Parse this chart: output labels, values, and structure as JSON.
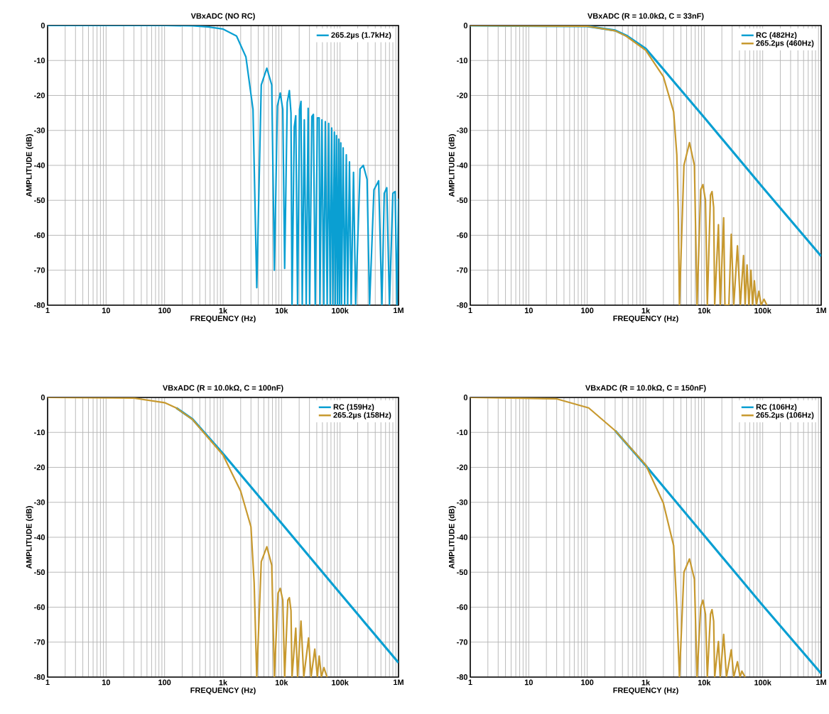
{
  "chart_data": [
    {
      "type": "line",
      "title": "VBxADC (NO RC)",
      "xlabel": "FREQUENCY (Hz)",
      "ylabel": "AMPLITUDE (dB)",
      "log": "x",
      "grid": true,
      "legend": "top right",
      "xlim": [
        1,
        1000000
      ],
      "xticks": [
        1,
        10,
        100,
        {
          "value": 1000,
          "label": "1k"
        },
        {
          "value": 10000,
          "label": "10k"
        },
        {
          "value": 100000,
          "label": "100k"
        },
        {
          "value": 1000000,
          "label": "1M"
        }
      ],
      "ylim": [
        -80,
        0
      ],
      "yticks": [
        -80,
        -70,
        -60,
        -50,
        -40,
        -30,
        -20,
        -10,
        0
      ],
      "series": [
        {
          "name": "265.2µs (1.7kHz)",
          "color": "#0a9fd2",
          "x": [
            1,
            100,
            300,
            550,
            1000,
            1700,
            2460,
            3250,
            3770,
            4500,
            5600,
            6800,
            7540,
            8500,
            9500,
            10500,
            11300,
            12500,
            13600,
            14500,
            15100,
            16500,
            17500,
            18800,
            20300,
            21500,
            22600,
            24500,
            26400,
            28500,
            30200,
            33000,
            35000,
            37700,
            41000,
            44000,
            45300,
            49000,
            52800,
            56000,
            60300,
            64000,
            67900,
            72000,
            75400,
            80000,
            83000,
            87000,
            90500,
            95000,
            98000,
            103000,
            106000,
            113000,
            120000,
            128000,
            135000,
            145000,
            155000,
            170000,
            185000,
            220000,
            250000,
            290000,
            320000,
            380000,
            457000,
            520000,
            570000,
            630000,
            700000,
            800000,
            875000,
            940000,
            1000000
          ],
          "values": [
            0,
            0,
            -0.1,
            -0.4,
            -1,
            -3,
            -9,
            -24,
            -75,
            -17,
            -12.2,
            -17,
            -70,
            -23,
            -19.3,
            -24,
            -69.5,
            -22,
            -18.6,
            -25,
            -80,
            -29,
            -25.8,
            -80,
            -24,
            -21.7,
            -80,
            -27,
            -80,
            -23.7,
            -80,
            -26,
            -25.4,
            -80,
            -26.4,
            -26.4,
            -80,
            -27,
            -80,
            -27.5,
            -80,
            -28,
            -80,
            -29.3,
            -80,
            -30.5,
            -80,
            -31.5,
            -80,
            -32.5,
            -80,
            -33.6,
            -80,
            -35,
            -80,
            -37,
            -80,
            -39,
            -80,
            -42,
            -80,
            -41,
            -40,
            -44,
            -80,
            -47,
            -44.4,
            -80,
            -48,
            -46.4,
            -80,
            -48,
            -47.5,
            -80,
            -49.5
          ]
        }
      ]
    },
    {
      "type": "line",
      "title": "VBxADC (R = 10.0kΩ, C = 33nF)",
      "xlabel": "FREQUENCY (Hz)",
      "ylabel": "AMPLITUDE (dB)",
      "log": "x",
      "grid": true,
      "legend": "top right",
      "xlim": [
        1,
        1000000
      ],
      "xticks": [
        1,
        10,
        100,
        {
          "value": 1000,
          "label": "1k"
        },
        {
          "value": 10000,
          "label": "10k"
        },
        {
          "value": 100000,
          "label": "100k"
        },
        {
          "value": 1000000,
          "label": "1M"
        }
      ],
      "ylim": [
        -80,
        0
      ],
      "yticks": [
        -80,
        -70,
        -60,
        -50,
        -40,
        -30,
        -20,
        -10,
        0
      ],
      "series": [
        {
          "name": "RC (482Hz)",
          "color": "#0a9fd2",
          "x": [
            1,
            100,
            300,
            482,
            1000,
            2000,
            3000,
            10000,
            100000,
            1000000
          ],
          "values": [
            0,
            -0.2,
            -1.4,
            -3,
            -6.6,
            -12.5,
            -16,
            -26.3,
            -46.3,
            -66
          ]
        },
        {
          "name": "265.2µs (460Hz)",
          "color": "#c7992f",
          "x": [
            1,
            100,
            300,
            460,
            1000,
            2000,
            3000,
            3400,
            3600,
            3770,
            4500,
            5600,
            6800,
            7540,
            8700,
            9500,
            10500,
            11300,
            12800,
            13600,
            14500,
            15100,
            17500,
            18800,
            21500,
            22600,
            26400,
            29000,
            32000,
            37000,
            41500,
            47000,
            50000,
            54000,
            58000,
            63000,
            67000,
            72000,
            78000,
            86000,
            94000,
            105000,
            118000
          ],
          "values": [
            0,
            -0.2,
            -1.5,
            -3,
            -7.1,
            -14.6,
            -24.7,
            -37,
            -53,
            -80,
            -40,
            -33.5,
            -40,
            -80,
            -47,
            -45.5,
            -50,
            -80,
            -48.5,
            -47.5,
            -52,
            -80,
            -57,
            -80,
            -55,
            -80,
            -80,
            -59.7,
            -80,
            -63,
            -80,
            -65.8,
            -80,
            -68.5,
            -80,
            -70,
            -80,
            -73,
            -80,
            -76,
            -80,
            -78.3,
            -80
          ]
        }
      ]
    },
    {
      "type": "line",
      "title": "VBxADC (R = 10.0kΩ, C = 100nF)",
      "xlabel": "FREQUENCY (Hz)",
      "ylabel": "AMPLITUDE (dB)",
      "log": "x",
      "grid": true,
      "legend": "top right",
      "xlim": [
        1,
        1000000
      ],
      "xticks": [
        1,
        10,
        100,
        {
          "value": 1000,
          "label": "1k"
        },
        {
          "value": 10000,
          "label": "10k"
        },
        {
          "value": 100000,
          "label": "100k"
        },
        {
          "value": 1000000,
          "label": "1M"
        }
      ],
      "ylim": [
        -80,
        0
      ],
      "yticks": [
        -80,
        -70,
        -60,
        -50,
        -40,
        -30,
        -20,
        -10,
        0
      ],
      "series": [
        {
          "name": "RC (159Hz)",
          "color": "#0a9fd2",
          "x": [
            159,
            300,
            1000,
            10000,
            100000,
            1000000
          ],
          "values": [
            -3,
            -6.2,
            -16.1,
            -36,
            -56,
            -75.9
          ]
        },
        {
          "name": "265.2µs (158Hz)",
          "color": "#c7992f",
          "x": [
            1,
            30,
            100,
            158,
            300,
            1000,
            2000,
            3000,
            3400,
            3770,
            4500,
            5600,
            6800,
            7540,
            8700,
            9500,
            10500,
            11300,
            12800,
            13600,
            14500,
            15100,
            17500,
            18800,
            21500,
            24000,
            29000,
            32000,
            37000,
            41000,
            44000,
            48000,
            53000,
            60000
          ],
          "values": [
            0,
            -0.2,
            -1.5,
            -3,
            -6.3,
            -16.5,
            -26.8,
            -37,
            -53,
            -80,
            -47,
            -42.7,
            -48,
            -80,
            -56,
            -54.6,
            -58,
            -80,
            -58,
            -57.3,
            -61,
            -80,
            -66,
            -80,
            -64,
            -80,
            -68.8,
            -80,
            -72,
            -80,
            -74,
            -80,
            -77.3,
            -80
          ]
        }
      ]
    },
    {
      "type": "line",
      "title": "VBxADC (R = 10.0kΩ, C = 150nF)",
      "xlabel": "FREQUENCY (Hz)",
      "ylabel": "AMPLITUDE (dB)",
      "log": "x",
      "grid": true,
      "legend": "top right",
      "xlim": [
        1,
        1000000
      ],
      "xticks": [
        1,
        10,
        100,
        {
          "value": 1000,
          "label": "1k"
        },
        {
          "value": 10000,
          "label": "10k"
        },
        {
          "value": 100000,
          "label": "100k"
        },
        {
          "value": 1000000,
          "label": "1M"
        }
      ],
      "ylim": [
        -80,
        0
      ],
      "yticks": [
        -80,
        -70,
        -60,
        -50,
        -40,
        -30,
        -20,
        -10,
        0
      ],
      "series": [
        {
          "name": "RC (106Hz)",
          "color": "#0a9fd2",
          "x": [
            300,
            1000,
            10000,
            100000,
            1000000
          ],
          "values": [
            -9.5,
            -19.5,
            -39.5,
            -59.5,
            -79
          ]
        },
        {
          "name": "265.2µs (106Hz)",
          "color": "#c7992f",
          "x": [
            1,
            30,
            106,
            300,
            1000,
            2000,
            3000,
            3400,
            3770,
            4500,
            5600,
            6800,
            7540,
            8700,
            9500,
            10500,
            11300,
            12800,
            13600,
            14500,
            15100,
            17500,
            18800,
            21500,
            24000,
            29000,
            32000,
            37000,
            41000,
            44000,
            50000
          ],
          "values": [
            0,
            -0.4,
            -3,
            -9.5,
            -19.3,
            -30.2,
            -42.4,
            -60,
            -80,
            -50,
            -46.2,
            -52,
            -80,
            -60,
            -58,
            -62,
            -80,
            -62,
            -60.7,
            -64,
            -80,
            -69.8,
            -80,
            -67.8,
            -80,
            -72.2,
            -80,
            -75.6,
            -80,
            -78.3,
            -80
          ]
        }
      ]
    }
  ]
}
